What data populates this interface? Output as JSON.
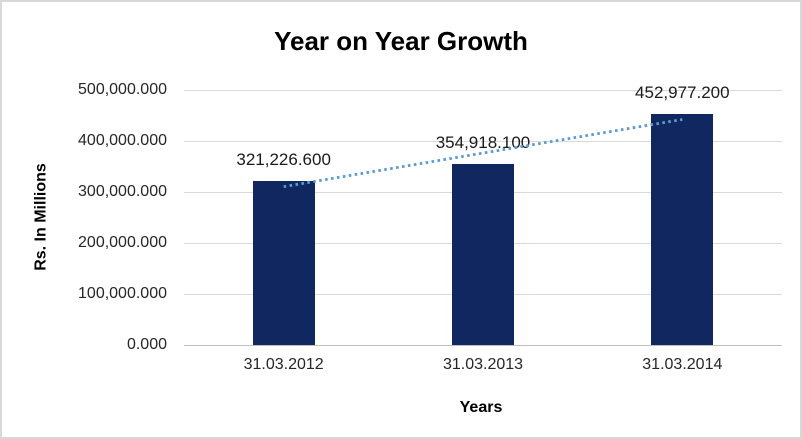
{
  "window": {
    "background_color": "#FFFFFF",
    "border_color": "#D8D8D8"
  },
  "chart_data": {
    "type": "bar",
    "title": "Year on Year Growth",
    "xlabel": "Years",
    "ylabel": "Rs. In Millions",
    "categories": [
      "31.03.2012",
      "31.03.2013",
      "31.03.2014"
    ],
    "values": [
      321226.6,
      354918.1,
      452977.2
    ],
    "data_labels": [
      "321,226.600",
      "354,918.100",
      "452,977.200"
    ],
    "ylim": [
      0,
      500000
    ],
    "ytick_values": [
      0,
      100000,
      200000,
      300000,
      400000,
      500000
    ],
    "ytick_labels": [
      "0.000",
      "100,000.000",
      "200,000.000",
      "300,000.000",
      "400,000.000",
      "500,000.000"
    ],
    "grid": true,
    "legend": "none",
    "bar_color": "#10285F",
    "gridline_color": "#D9D9D9",
    "axis_line_color": "#BFBFBF",
    "label_text_color": "#262626",
    "trendline": {
      "kind": "linear",
      "style": "dotted",
      "color": "#5B9BD5"
    }
  }
}
